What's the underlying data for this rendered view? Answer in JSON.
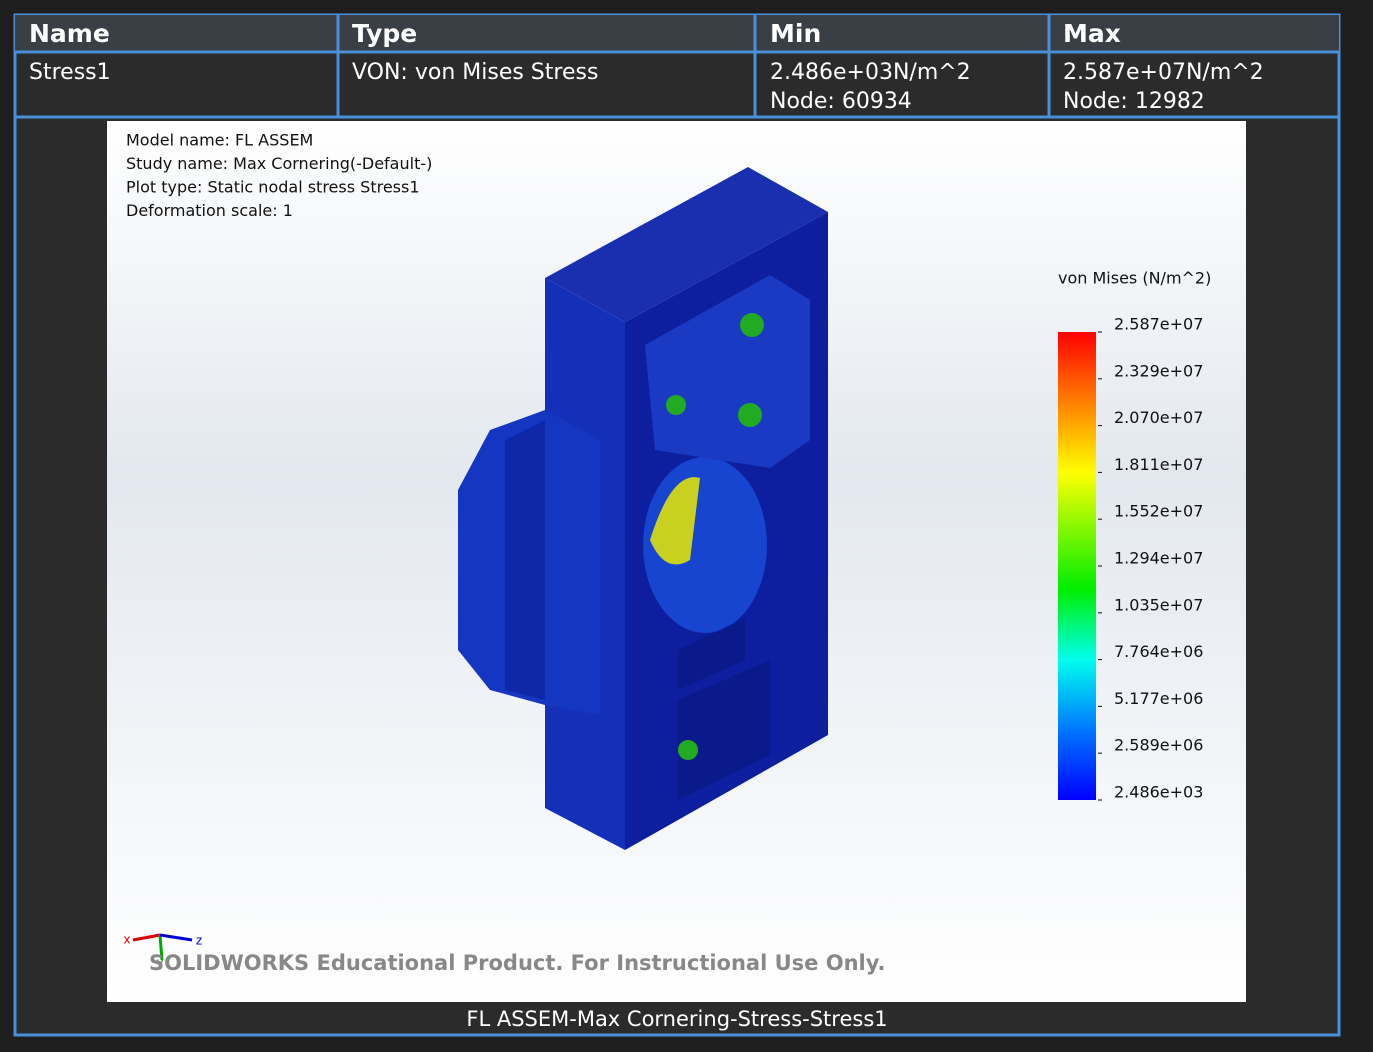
{
  "table": {
    "headers": [
      "Name",
      "Type",
      "Min",
      "Max"
    ],
    "rows": [
      [
        [
          "Stress1"
        ],
        [
          "VON: von Mises Stress"
        ],
        [
          "2.486e+03N/m^2",
          "Node: 60934"
        ],
        [
          "2.587e+07N/m^2",
          "Node: 12982"
        ]
      ]
    ]
  },
  "plot": {
    "info": [
      "Model name: FL ASSEM",
      "Study name: Max Cornering(-Default-)",
      "Plot type: Static nodal stress Stress1",
      "Deformation scale: 1"
    ],
    "legend_title": "von Mises (N/m^2)",
    "legend_labels": [
      "2.587e+07",
      "2.329e+07",
      "2.070e+07",
      "1.811e+07",
      "1.552e+07",
      "1.294e+07",
      "1.035e+07",
      "7.764e+06",
      "5.177e+06",
      "2.589e+06",
      "2.486e+03"
    ],
    "axes": [
      "x",
      "y",
      "z"
    ],
    "watermark": "SOLIDWORKS Educational Product. For Instructional Use Only.",
    "caption": "FL ASSEM-Max Cornering-Stress-Stress1"
  }
}
